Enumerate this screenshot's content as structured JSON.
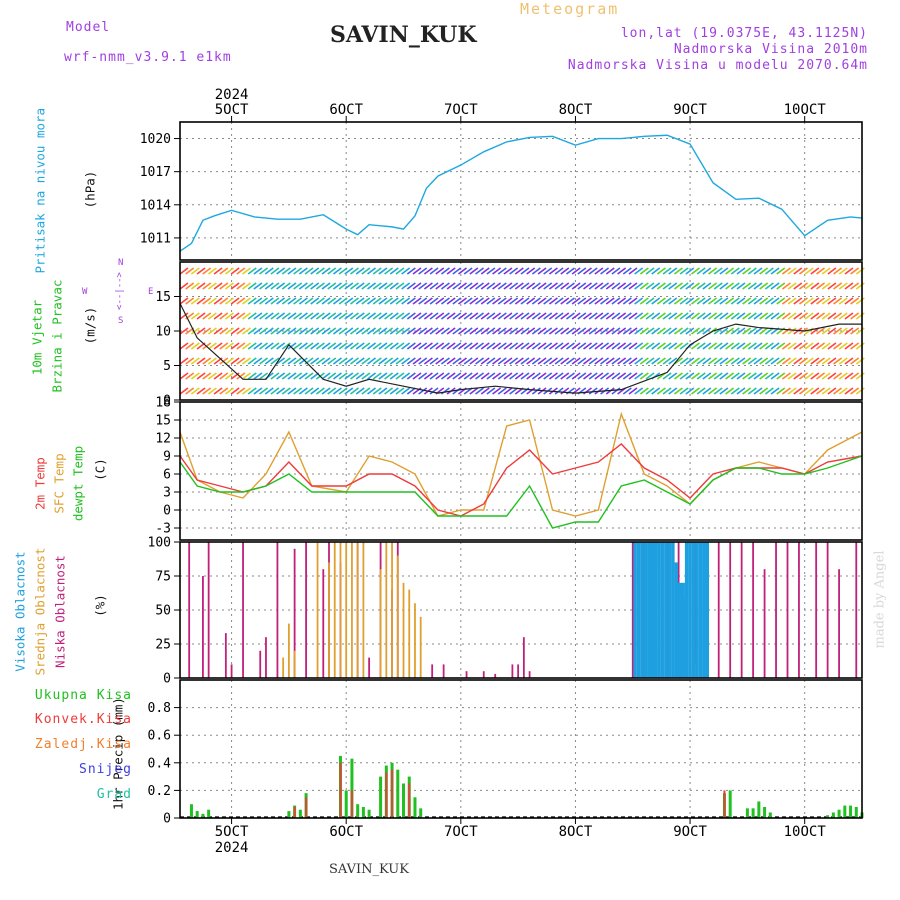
{
  "header": {
    "model_label": "Model",
    "model_name": "wrf-nmm_v3.9.1  e1km",
    "station": "SAVIN_KUK",
    "meteogram": "Meteogram",
    "lonlat": "lon,lat (19.0375E, 43.1125N)",
    "altitude": "Nadmorska Visina 2010m",
    "model_altitude": "Nadmorska Visina u modelu 2070.64m"
  },
  "footer": {
    "station": "SAVIN_KUK",
    "credit": "made by Angel"
  },
  "time_axis": {
    "year": "2024",
    "ticks": [
      "5OCT",
      "6OCT",
      "7OCT",
      "8OCT",
      "9OCT",
      "10OCT"
    ],
    "tick_days": [
      5,
      6,
      7,
      8,
      9,
      10
    ],
    "range_days": [
      4.55,
      10.5
    ]
  },
  "panel_labels": {
    "pressure": [
      "Pritisak na nivou mora"
    ],
    "pressure_unit": "(hPa)",
    "wind": [
      "10m Vjetar",
      "Brzina i Pravac"
    ],
    "wind_unit": "(m/s)",
    "compass": {
      "north": "N",
      "east": "E",
      "west": "W",
      "south": "S",
      "arrows": "<--|-->"
    },
    "temp": [
      "2m Temp",
      "SFC Temp",
      "dewpt Temp"
    ],
    "temp_unit": "(C)",
    "cloud": [
      "Visoka Oblacnost",
      "Srednja Oblacnost",
      "Niska Oblacnost"
    ],
    "cloud_unit": "(%)",
    "precip_ylabel": "1hr Precip (mm)",
    "precip_legend": [
      "Ukupna Kisa",
      "Konvek.Kisa",
      "Zaledj.Kisa",
      "Snijeg",
      "Grad"
    ]
  },
  "colors": {
    "pressure": "#1ea8e0",
    "temp2m": "#ee3b3b",
    "sfc": "#e0a030",
    "dew": "#20c020",
    "cloud_high": "#1ea0e0",
    "cloud_mid": "#e0a030",
    "cloud_low": "#c0207a",
    "precip_total": "#20c020",
    "precip_conv": "#ee3b3b",
    "precip_frz": "#f08030",
    "precip_snow": "#4040e0",
    "precip_grad": "#20c0a0",
    "header_purple": "#a040e0",
    "meteogram_label": "#f0c070",
    "credit": "#d8d8d8"
  },
  "chart_data": [
    {
      "type": "line",
      "name": "pressure",
      "ylim": [
        1009,
        1021.5
      ],
      "yticks": [
        1011,
        1014,
        1017,
        1020
      ],
      "x": [
        4.55,
        4.65,
        4.75,
        4.85,
        5.0,
        5.2,
        5.4,
        5.6,
        5.8,
        6.0,
        6.1,
        6.2,
        6.4,
        6.5,
        6.6,
        6.7,
        6.8,
        7.0,
        7.2,
        7.4,
        7.6,
        7.8,
        8.0,
        8.2,
        8.4,
        8.6,
        8.8,
        9.0,
        9.2,
        9.4,
        9.6,
        9.8,
        10.0,
        10.2,
        10.4,
        10.5
      ],
      "values": [
        1009.8,
        1010.5,
        1012.6,
        1013.0,
        1013.5,
        1012.9,
        1012.7,
        1012.7,
        1013.1,
        1011.8,
        1011.3,
        1012.2,
        1012.0,
        1011.8,
        1013.0,
        1015.5,
        1016.6,
        1017.6,
        1018.8,
        1019.7,
        1020.1,
        1020.2,
        1019.4,
        1020.0,
        1020.0,
        1020.2,
        1020.3,
        1019.5,
        1016.0,
        1014.5,
        1014.6,
        1013.6,
        1011.2,
        1012.6,
        1012.9,
        1012.8
      ]
    },
    {
      "type": "line",
      "name": "wind_speed",
      "ylim": [
        0,
        20
      ],
      "yticks": [
        0,
        5,
        10,
        15
      ],
      "x": [
        4.55,
        4.7,
        4.9,
        5.1,
        5.3,
        5.5,
        5.8,
        6.0,
        6.2,
        6.5,
        6.8,
        7.0,
        7.3,
        7.6,
        8.0,
        8.4,
        8.8,
        9.0,
        9.2,
        9.4,
        9.6,
        10.0,
        10.3,
        10.5
      ],
      "values": [
        14,
        9,
        6,
        3,
        3,
        8,
        3,
        2,
        3,
        2,
        1,
        1.5,
        2,
        1.5,
        1,
        1.5,
        4,
        8,
        10,
        11,
        10.5,
        10,
        11,
        11
      ]
    },
    {
      "type": "line",
      "name": "temperature",
      "ylim": [
        -5,
        18
      ],
      "yticks": [
        -3,
        0,
        3,
        6,
        9,
        12,
        15,
        18
      ],
      "x": [
        4.55,
        4.7,
        4.9,
        5.1,
        5.3,
        5.5,
        5.7,
        6.0,
        6.2,
        6.4,
        6.6,
        6.8,
        7.0,
        7.2,
        7.4,
        7.6,
        7.8,
        8.0,
        8.2,
        8.4,
        8.6,
        8.8,
        9.0,
        9.2,
        9.4,
        9.6,
        9.8,
        10.0,
        10.2,
        10.5
      ],
      "series": [
        {
          "name": "2m Temp",
          "values": [
            9,
            5,
            4,
            3,
            4,
            8,
            4,
            4,
            6,
            6,
            4,
            0,
            -1,
            1,
            7,
            10,
            6,
            7,
            8,
            11,
            7,
            5,
            2,
            6,
            7,
            7,
            7,
            6,
            8,
            9
          ]
        },
        {
          "name": "SFC Temp",
          "values": [
            13,
            5,
            3,
            2,
            6,
            13,
            4,
            3,
            9,
            8,
            6,
            -1,
            0,
            0,
            14,
            15,
            0,
            -1,
            0,
            16,
            6,
            4,
            1,
            5,
            7,
            8,
            7,
            6,
            10,
            13
          ]
        },
        {
          "name": "dewpt Temp",
          "values": [
            8,
            4,
            3,
            3,
            4,
            6,
            3,
            3,
            3,
            3,
            3,
            -1,
            -1,
            -1,
            -1,
            4,
            -3,
            -2,
            -2,
            4,
            5,
            3,
            1,
            5,
            7,
            7,
            6,
            6,
            7,
            9
          ]
        }
      ]
    },
    {
      "type": "bar",
      "name": "cloud",
      "ylim": [
        0,
        100
      ],
      "yticks": [
        0,
        25,
        50,
        75,
        100
      ],
      "series": [
        {
          "name": "Niska",
          "x": [
            4.63,
            4.75,
            4.8,
            4.95,
            5.0,
            5.1,
            5.25,
            5.3,
            5.4,
            5.55,
            5.65,
            5.8,
            5.85,
            5.95,
            6.1,
            6.2,
            6.3,
            6.4,
            6.45,
            6.75,
            6.85,
            7.05,
            7.2,
            7.3,
            7.45,
            7.5,
            7.55,
            7.6,
            8.5,
            8.6,
            8.7,
            8.8,
            8.9,
            9.05,
            9.15,
            9.25,
            9.35,
            9.45,
            9.55,
            9.65,
            9.75,
            9.85,
            9.95,
            10.1,
            10.2,
            10.3,
            10.45
          ],
          "values": [
            100,
            75,
            100,
            33,
            10,
            100,
            20,
            30,
            100,
            95,
            100,
            80,
            100,
            85,
            100,
            15,
            100,
            65,
            100,
            10,
            10,
            5,
            5,
            3,
            10,
            10,
            30,
            5,
            100,
            100,
            100,
            100,
            100,
            100,
            100,
            100,
            100,
            100,
            100,
            80,
            100,
            100,
            100,
            100,
            100,
            80,
            100
          ]
        },
        {
          "name": "Srednja",
          "x": [
            5.45,
            5.5,
            5.55,
            5.75,
            5.85,
            5.9,
            5.95,
            6.0,
            6.05,
            6.1,
            6.15,
            6.3,
            6.35,
            6.4,
            6.45,
            6.5,
            6.55,
            6.6,
            6.65,
            8.95,
            9.0,
            9.05
          ],
          "values": [
            15,
            40,
            20,
            100,
            85,
            100,
            100,
            100,
            100,
            100,
            100,
            80,
            100,
            100,
            90,
            70,
            65,
            55,
            45,
            60,
            95,
            10
          ]
        },
        {
          "name": "Visoka",
          "x": [
            8.52,
            8.55,
            8.58,
            8.61,
            8.64,
            8.67,
            8.7,
            8.73,
            8.76,
            8.79,
            8.82,
            8.85,
            8.88,
            8.91,
            8.94,
            8.97,
            9.0,
            9.03,
            9.06,
            9.09,
            9.12,
            9.15
          ],
          "values": [
            100,
            100,
            100,
            100,
            100,
            100,
            100,
            100,
            100,
            100,
            100,
            100,
            85,
            70,
            70,
            100,
            100,
            100,
            100,
            100,
            100,
            100
          ]
        }
      ]
    },
    {
      "type": "bar",
      "name": "precip",
      "ylim": [
        0,
        1.0
      ],
      "yticks": [
        0,
        0.2,
        0.4,
        0.6,
        0.8
      ],
      "series": [
        {
          "name": "Ukupna Kisa",
          "x": [
            4.65,
            4.7,
            4.75,
            4.8,
            5.5,
            5.55,
            5.6,
            5.65,
            5.95,
            6.0,
            6.05,
            6.1,
            6.15,
            6.2,
            6.3,
            6.35,
            6.4,
            6.45,
            6.5,
            6.55,
            6.6,
            6.65,
            9.3,
            9.35,
            9.5,
            9.55,
            9.6,
            9.65,
            9.7,
            10.2,
            10.25,
            10.3,
            10.35,
            10.4,
            10.45,
            10.5
          ],
          "values": [
            0.1,
            0.05,
            0.03,
            0.06,
            0.05,
            0.09,
            0.06,
            0.18,
            0.45,
            0.2,
            0.43,
            0.1,
            0.08,
            0.06,
            0.3,
            0.38,
            0.4,
            0.35,
            0.25,
            0.3,
            0.15,
            0.07,
            0.18,
            0.2,
            0.07,
            0.07,
            0.12,
            0.08,
            0.04,
            0.02,
            0.04,
            0.06,
            0.09,
            0.09,
            0.08,
            0.04
          ]
        },
        {
          "name": "Konvek.Kisa",
          "x": [
            5.55,
            5.65,
            5.95,
            6.05,
            6.35,
            6.4,
            6.55,
            9.3
          ],
          "values": [
            0.08,
            0.15,
            0.4,
            0.2,
            0.33,
            0.35,
            0.25,
            0.2
          ]
        }
      ]
    }
  ]
}
